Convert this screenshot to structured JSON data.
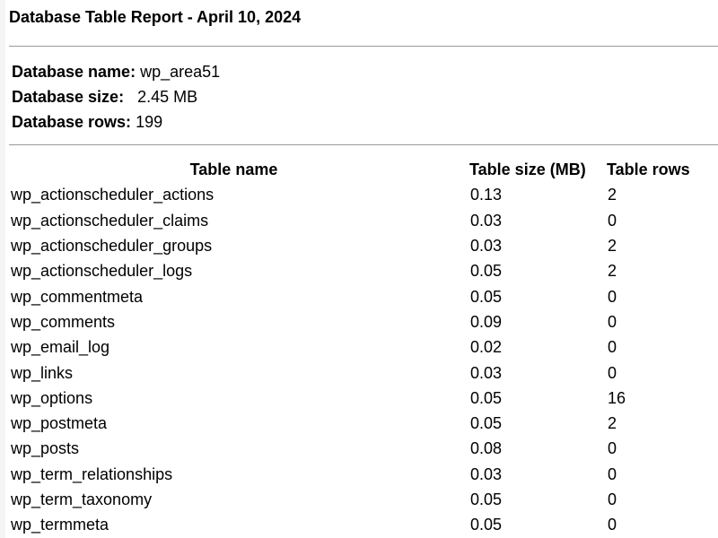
{
  "report": {
    "title": "Database Table Report - April 10, 2024"
  },
  "database": {
    "name_label": "Database name:",
    "name_value": "wp_area51",
    "size_label": "Database size:",
    "size_value": "2.45 MB",
    "rows_label": "Database rows:",
    "rows_value": "199"
  },
  "table": {
    "headers": {
      "name": "Table name",
      "size": "Table size (MB)",
      "rows": "Table rows"
    },
    "rows": [
      {
        "name": "wp_actionscheduler_actions",
        "size": "0.13",
        "rows": "2"
      },
      {
        "name": "wp_actionscheduler_claims",
        "size": "0.03",
        "rows": "0"
      },
      {
        "name": "wp_actionscheduler_groups",
        "size": "0.03",
        "rows": "2"
      },
      {
        "name": "wp_actionscheduler_logs",
        "size": "0.05",
        "rows": "2"
      },
      {
        "name": "wp_commentmeta",
        "size": "0.05",
        "rows": "0"
      },
      {
        "name": "wp_comments",
        "size": "0.09",
        "rows": "0"
      },
      {
        "name": "wp_email_log",
        "size": "0.02",
        "rows": "0"
      },
      {
        "name": "wp_links",
        "size": "0.03",
        "rows": "0"
      },
      {
        "name": "wp_options",
        "size": "0.05",
        "rows": "16"
      },
      {
        "name": "wp_postmeta",
        "size": "0.05",
        "rows": "2"
      },
      {
        "name": "wp_posts",
        "size": "0.08",
        "rows": "0"
      },
      {
        "name": "wp_term_relationships",
        "size": "0.03",
        "rows": "0"
      },
      {
        "name": "wp_term_taxonomy",
        "size": "0.05",
        "rows": "0"
      },
      {
        "name": "wp_termmeta",
        "size": "0.05",
        "rows": "0"
      }
    ]
  }
}
